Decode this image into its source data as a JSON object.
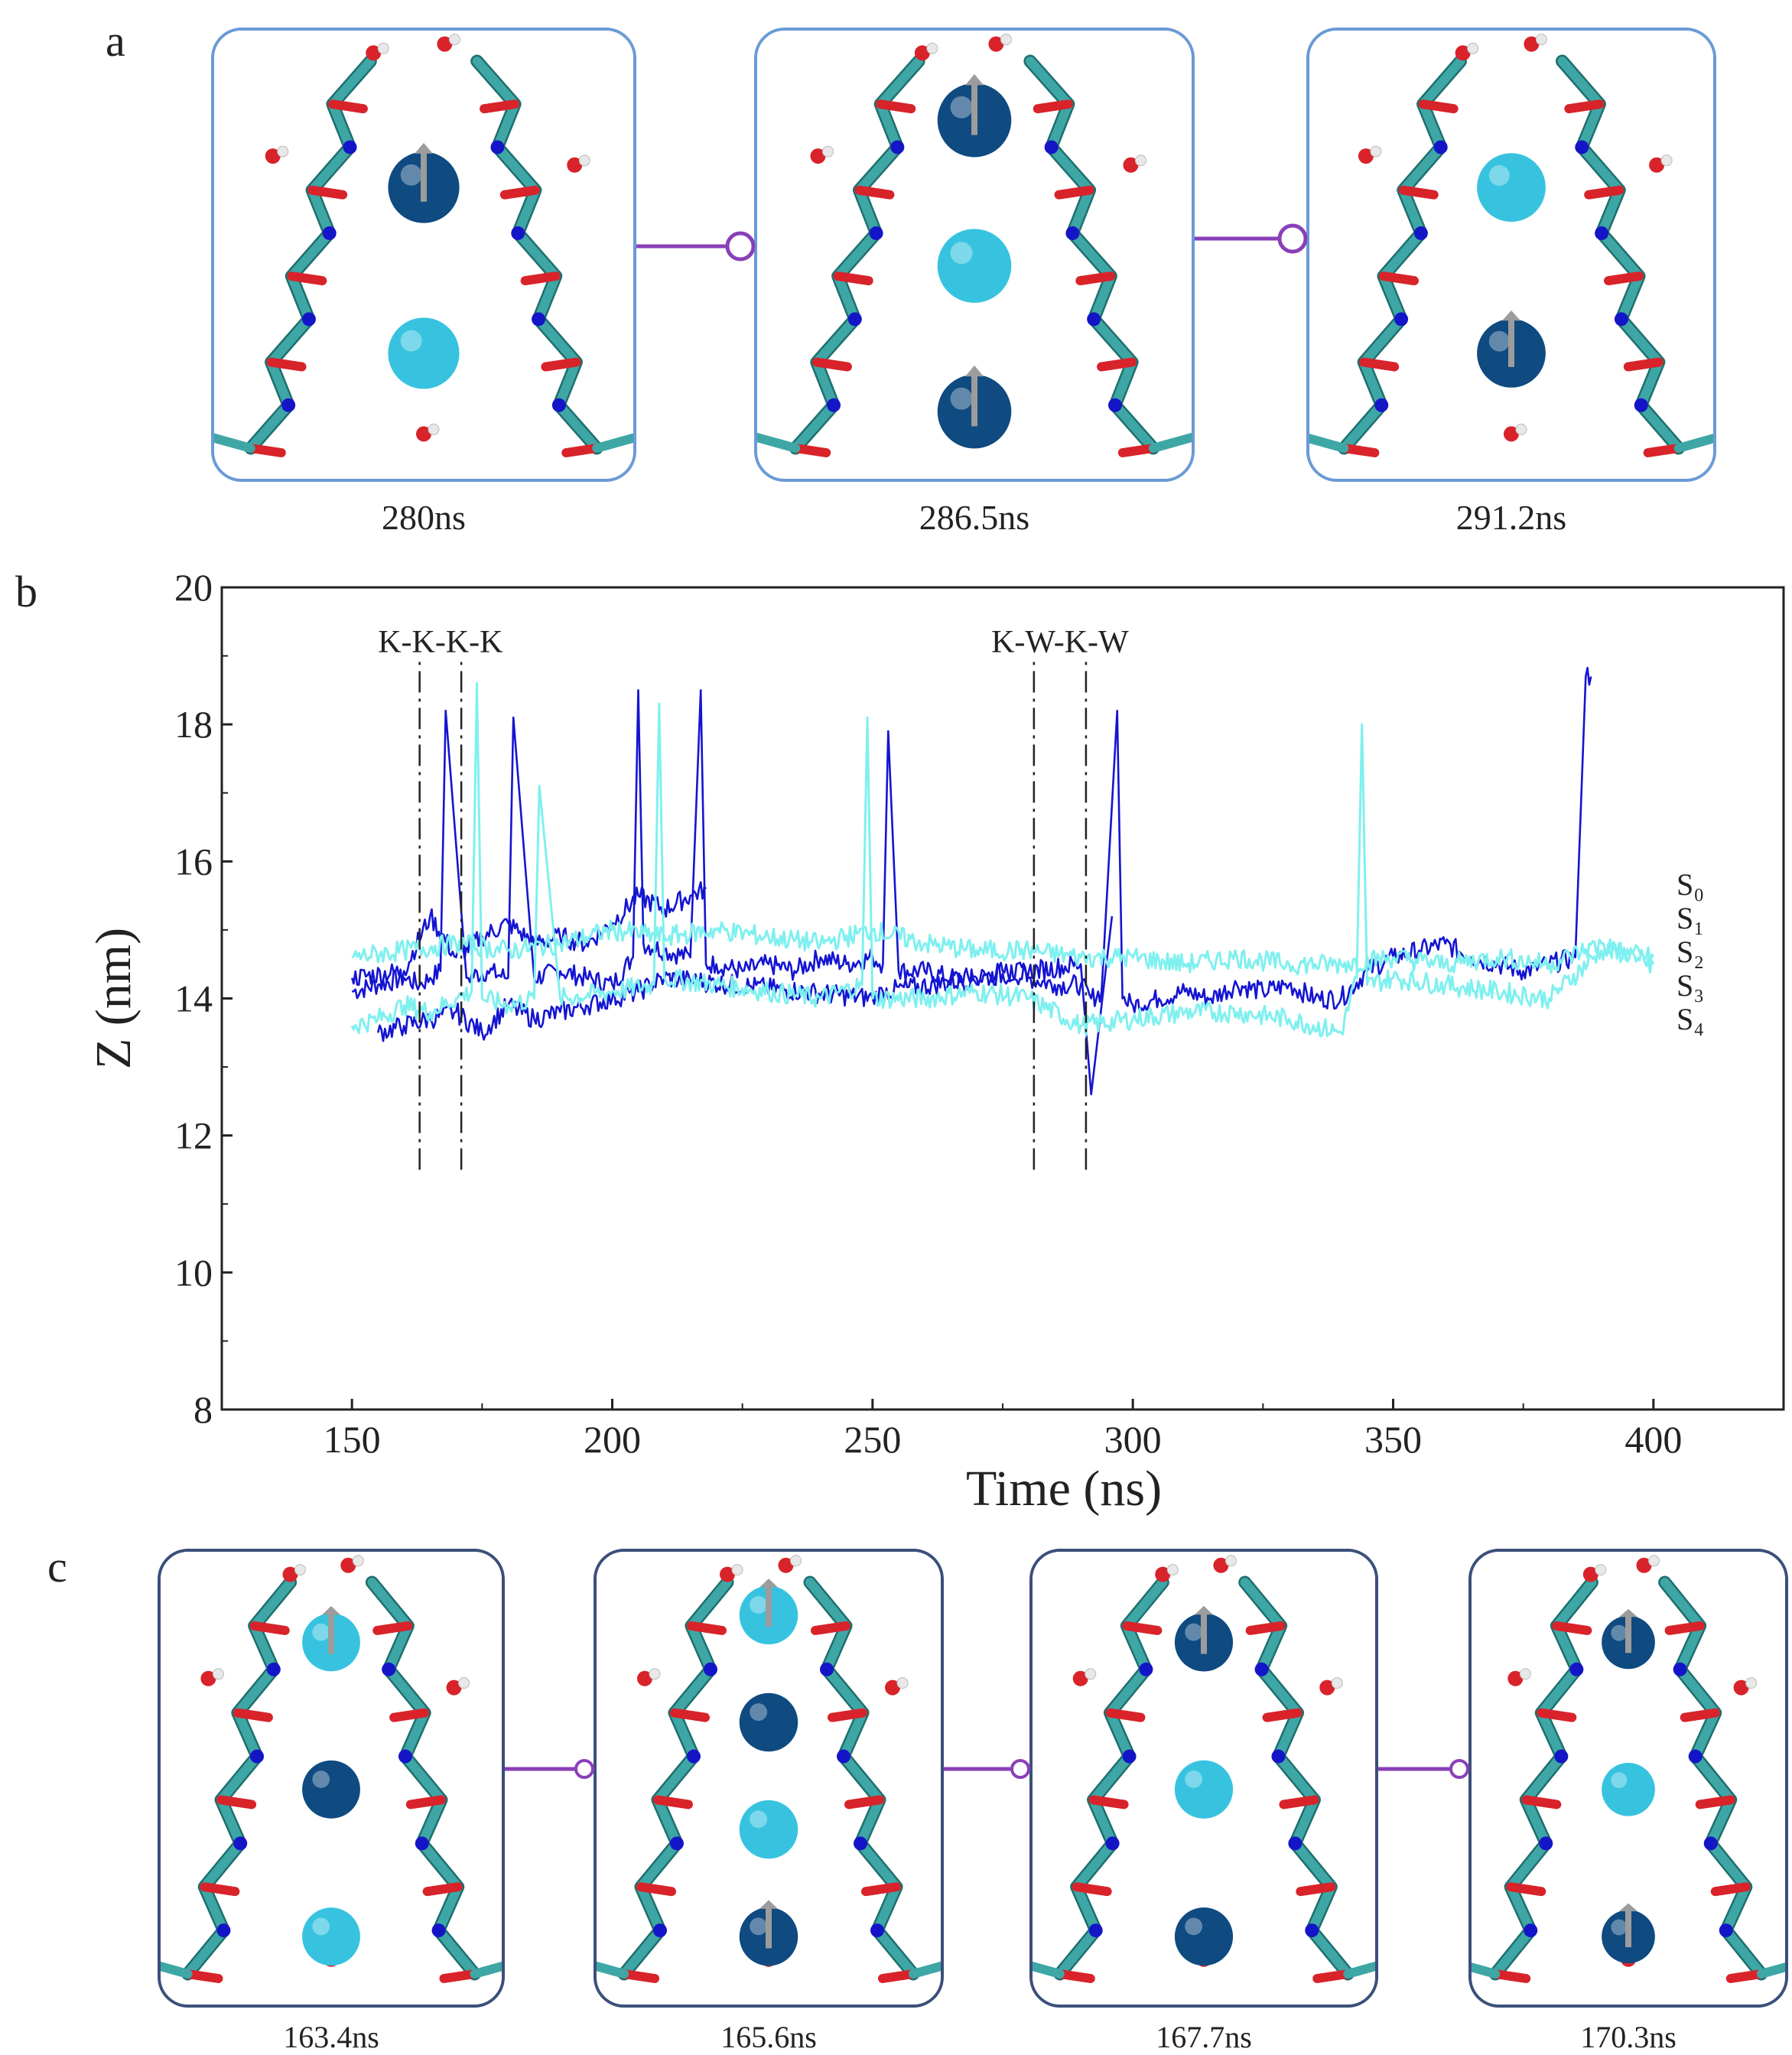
{
  "figure": {
    "panel_labels": [
      "a",
      "b",
      "c"
    ],
    "colors": {
      "ion_dark": "#0f4a80",
      "ion_light": "#37c3df",
      "frame_a": "#6a9ad6",
      "frame_c": "#3b4f7a",
      "connector": "#8a3fb8",
      "carbon": "#3fa6a6",
      "oxygen": "#d8232a",
      "nitrogen": "#1515c8",
      "hydrogen": "#e8e8e8"
    }
  },
  "panel_a": {
    "snapshots": [
      {
        "time_label": "280ns",
        "ions": [
          "dark-up",
          "light"
        ]
      },
      {
        "time_label": "286.5ns",
        "ions": [
          "dark-up",
          "light",
          "dark-up"
        ]
      },
      {
        "time_label": "291.2ns",
        "ions": [
          "light",
          "dark-up"
        ]
      }
    ]
  },
  "panel_c": {
    "snapshots": [
      {
        "time_label": "163.4ns",
        "ions": [
          "light-up",
          "dark",
          "light"
        ]
      },
      {
        "time_label": "165.6ns",
        "ions": [
          "light-up",
          "dark",
          "light",
          "dark-up"
        ]
      },
      {
        "time_label": "167.7ns",
        "ions": [
          "dark-up",
          "light",
          "dark"
        ]
      },
      {
        "time_label": "170.3ns",
        "ions": [
          "dark-up",
          "light",
          "dark-up"
        ]
      }
    ]
  },
  "chart_data": {
    "type": "line",
    "title": "",
    "xlabel": "Time (ns)",
    "ylabel": "Z (nm)",
    "xlim": [
      125,
      425
    ],
    "ylim": [
      8,
      20
    ],
    "xticks": [
      150,
      200,
      250,
      300,
      350,
      400
    ],
    "yticks": [
      8,
      10,
      12,
      14,
      16,
      18,
      20
    ],
    "site_labels": [
      "S₀",
      "S₁",
      "S₂",
      "S₃",
      "S₄"
    ],
    "annotations": [
      {
        "text": "K-K-K-K",
        "x": 167
      },
      {
        "text": "K-W-K-W",
        "x": 286
      }
    ],
    "vlines": [
      163,
      171,
      281,
      291
    ],
    "vline_range": [
      11.5,
      19.0
    ],
    "series": [
      {
        "name": "dark ions",
        "color": "#1414d2",
        "x": [
          150,
          155,
          160,
          163,
          165,
          167,
          168,
          172,
          176,
          180,
          181,
          185,
          190,
          195,
          200,
          204,
          205,
          206,
          210,
          215,
          217,
          218,
          220,
          225,
          230,
          235,
          240,
          245,
          250,
          252,
          253,
          255,
          260,
          265,
          270,
          275,
          280,
          285,
          290,
          292,
          294,
          297,
          298,
          300,
          305,
          310,
          315,
          320,
          325,
          330,
          335,
          340,
          345,
          350,
          355,
          360,
          365,
          370,
          375,
          380,
          385,
          387,
          388
        ],
        "values": [
          14.1,
          14.2,
          14.3,
          14.2,
          14.3,
          14.4,
          18.2,
          14.3,
          14.4,
          14.3,
          18.1,
          14.3,
          14.4,
          14.3,
          14.2,
          14.6,
          18.5,
          14.8,
          14.7,
          14.6,
          18.5,
          14.5,
          14.5,
          14.4,
          14.5,
          14.4,
          14.6,
          14.5,
          14.6,
          14.5,
          17.9,
          14.4,
          14.4,
          14.3,
          14.3,
          14.4,
          14.3,
          14.2,
          14.2,
          14.0,
          14.1,
          18.2,
          14.0,
          13.9,
          14.0,
          14.1,
          14.0,
          14.2,
          14.1,
          14.2,
          14.0,
          14.0,
          14.4,
          14.6,
          14.7,
          14.8,
          14.6,
          14.5,
          14.4,
          14.5,
          14.6,
          18.7,
          18.7
        ]
      },
      {
        "name": "dark ions (upper)",
        "color": "#1414d2",
        "x": [
          150,
          160,
          165,
          170,
          175,
          180,
          185,
          190,
          195,
          200,
          205,
          210,
          215,
          218
        ],
        "values": [
          14.3,
          14.4,
          15.2,
          14.6,
          14.9,
          15.1,
          14.8,
          14.9,
          14.8,
          15.1,
          15.5,
          15.3,
          15.5,
          15.6
        ]
      },
      {
        "name": "dark ions (lower)",
        "color": "#1414d2",
        "x": [
          155,
          160,
          165,
          170,
          175,
          180,
          185,
          190,
          195,
          200,
          205,
          210,
          250,
          252,
          290,
          292,
          296
        ],
        "values": [
          13.5,
          13.6,
          13.7,
          13.8,
          13.5,
          13.9,
          13.7,
          13.8,
          13.9,
          14.0,
          14.1,
          14.3,
          14.0,
          14.1,
          14.5,
          12.6,
          15.2
        ]
      },
      {
        "name": "light ions",
        "color": "#7ff0ef",
        "x": [
          150,
          155,
          160,
          165,
          170,
          173,
          174,
          175,
          180,
          185,
          186,
          190,
          200,
          208,
          209,
          210,
          220,
          230,
          240,
          248,
          249,
          250,
          260,
          270,
          280,
          290,
          300,
          310,
          320,
          330,
          340,
          343,
          344,
          345,
          350,
          360,
          370,
          380,
          390,
          400
        ],
        "values": [
          13.6,
          13.7,
          13.9,
          13.8,
          14.0,
          14.1,
          18.6,
          14.0,
          13.9,
          14.0,
          17.1,
          14.0,
          14.1,
          14.2,
          18.3,
          14.3,
          14.2,
          14.1,
          14.0,
          14.2,
          18.1,
          14.0,
          14.0,
          14.1,
          14.0,
          13.6,
          13.7,
          13.8,
          13.8,
          13.7,
          13.5,
          14.3,
          18.0,
          14.2,
          14.3,
          14.2,
          14.1,
          14.0,
          14.7,
          14.6
        ]
      },
      {
        "name": "light ions (upper)",
        "color": "#7ff0ef",
        "x": [
          150,
          160,
          170,
          180,
          190,
          200,
          210,
          220,
          230,
          240,
          250,
          260,
          270,
          280,
          290,
          300,
          310,
          320,
          330,
          340,
          350,
          360,
          370,
          380,
          390,
          400
        ],
        "values": [
          14.6,
          14.7,
          14.8,
          14.7,
          14.8,
          15.0,
          14.9,
          15.0,
          14.9,
          14.8,
          15.0,
          14.8,
          14.7,
          14.7,
          14.6,
          14.6,
          14.5,
          14.6,
          14.5,
          14.5,
          14.6,
          14.5,
          14.6,
          14.5,
          14.8,
          14.5
        ]
      }
    ]
  }
}
